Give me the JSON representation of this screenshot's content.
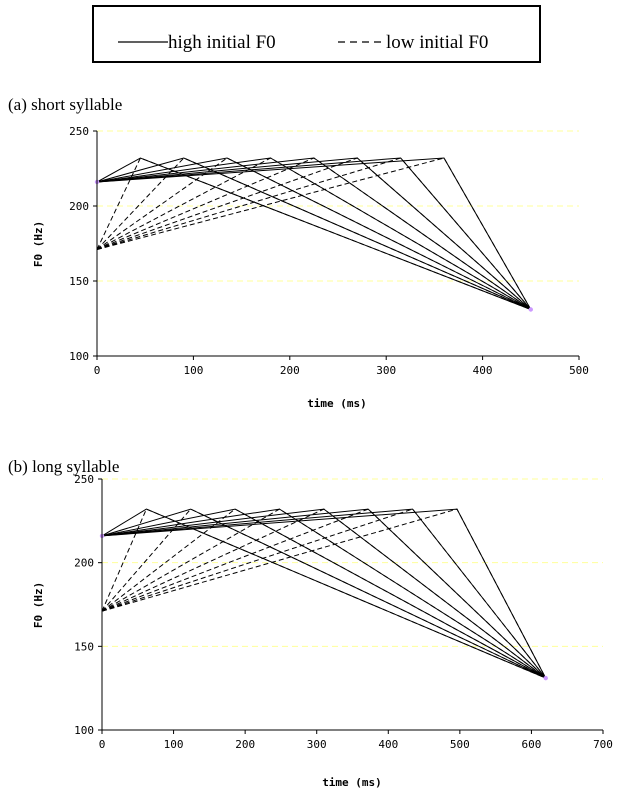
{
  "legend": [
    {
      "label": "high initial F0",
      "style": "solid"
    },
    {
      "label": "low initial F0",
      "style": "dashed"
    }
  ],
  "colors": {
    "line": "#000000",
    "grid": "#ffff99",
    "endpoint": "#cc99ff",
    "highlight": "#9999ff"
  },
  "chart_data": [
    {
      "type": "line",
      "title": "(a) short syllable",
      "xlabel": "time (ms)",
      "ylabel": "F0 (Hz)",
      "xlim": [
        0,
        500
      ],
      "ylim": [
        100,
        250
      ],
      "xticks": [
        0,
        100,
        200,
        300,
        400,
        500
      ],
      "yticks": [
        100,
        150,
        200,
        250
      ],
      "grid": true,
      "series": [
        {
          "style": "solid",
          "x": [
            0,
            45,
            450
          ],
          "y": [
            216,
            232,
            131
          ]
        },
        {
          "style": "solid",
          "x": [
            0,
            90,
            450
          ],
          "y": [
            216,
            232,
            131
          ]
        },
        {
          "style": "solid",
          "x": [
            0,
            135,
            450
          ],
          "y": [
            216,
            232,
            131
          ]
        },
        {
          "style": "solid",
          "x": [
            0,
            180,
            450
          ],
          "y": [
            216,
            232,
            131
          ]
        },
        {
          "style": "solid",
          "x": [
            0,
            225,
            450
          ],
          "y": [
            216,
            232,
            131
          ]
        },
        {
          "style": "solid",
          "x": [
            0,
            270,
            450
          ],
          "y": [
            216,
            232,
            131
          ]
        },
        {
          "style": "solid",
          "x": [
            0,
            315,
            450
          ],
          "y": [
            216,
            232,
            131
          ]
        },
        {
          "style": "solid",
          "x": [
            0,
            360,
            450
          ],
          "y": [
            216,
            232,
            131
          ]
        },
        {
          "style": "dashed",
          "x": [
            0,
            45,
            450
          ],
          "y": [
            171,
            232,
            131
          ]
        },
        {
          "style": "dashed",
          "x": [
            0,
            90,
            450
          ],
          "y": [
            171,
            232,
            131
          ]
        },
        {
          "style": "dashed",
          "x": [
            0,
            135,
            450
          ],
          "y": [
            171,
            232,
            131
          ]
        },
        {
          "style": "dashed",
          "x": [
            0,
            180,
            450
          ],
          "y": [
            171,
            232,
            131
          ]
        },
        {
          "style": "dashed",
          "x": [
            0,
            225,
            450
          ],
          "y": [
            171,
            232,
            131
          ]
        },
        {
          "style": "dashed",
          "x": [
            0,
            270,
            450
          ],
          "y": [
            171,
            232,
            131
          ]
        },
        {
          "style": "dashed",
          "x": [
            0,
            315,
            450
          ],
          "y": [
            171,
            232,
            131
          ]
        },
        {
          "style": "dashed",
          "x": [
            0,
            360,
            450
          ],
          "y": [
            171,
            232,
            131
          ]
        }
      ]
    },
    {
      "type": "line",
      "title": "(b) long syllable",
      "xlabel": "time (ms)",
      "ylabel": "F0 (Hz)",
      "xlim": [
        0,
        700
      ],
      "ylim": [
        100,
        250
      ],
      "xticks": [
        0,
        100,
        200,
        300,
        400,
        500,
        600,
        700
      ],
      "yticks": [
        100,
        150,
        200,
        250
      ],
      "grid": true,
      "series": [
        {
          "style": "solid",
          "x": [
            0,
            62,
            620
          ],
          "y": [
            216,
            232,
            131
          ]
        },
        {
          "style": "solid",
          "x": [
            0,
            124,
            620
          ],
          "y": [
            216,
            232,
            131
          ]
        },
        {
          "style": "solid",
          "x": [
            0,
            186,
            620
          ],
          "y": [
            216,
            232,
            131
          ]
        },
        {
          "style": "solid",
          "x": [
            0,
            248,
            620
          ],
          "y": [
            216,
            232,
            131
          ]
        },
        {
          "style": "solid",
          "x": [
            0,
            310,
            620
          ],
          "y": [
            216,
            232,
            131
          ]
        },
        {
          "style": "solid",
          "x": [
            0,
            372,
            620
          ],
          "y": [
            216,
            232,
            131
          ]
        },
        {
          "style": "solid",
          "x": [
            0,
            434,
            620
          ],
          "y": [
            216,
            232,
            131
          ]
        },
        {
          "style": "solid",
          "x": [
            0,
            496,
            620
          ],
          "y": [
            216,
            232,
            131
          ]
        },
        {
          "style": "dashed",
          "x": [
            0,
            62,
            620
          ],
          "y": [
            171,
            232,
            131
          ]
        },
        {
          "style": "dashed",
          "x": [
            0,
            124,
            620
          ],
          "y": [
            171,
            232,
            131
          ]
        },
        {
          "style": "dashed",
          "x": [
            0,
            186,
            620
          ],
          "y": [
            171,
            232,
            131
          ]
        },
        {
          "style": "dashed",
          "x": [
            0,
            248,
            620
          ],
          "y": [
            171,
            232,
            131
          ]
        },
        {
          "style": "dashed",
          "x": [
            0,
            310,
            620
          ],
          "y": [
            171,
            232,
            131
          ]
        },
        {
          "style": "dashed",
          "x": [
            0,
            372,
            620
          ],
          "y": [
            171,
            232,
            131
          ]
        },
        {
          "style": "dashed",
          "x": [
            0,
            434,
            620
          ],
          "y": [
            171,
            232,
            131
          ]
        },
        {
          "style": "dashed",
          "x": [
            0,
            496,
            620
          ],
          "y": [
            171,
            232,
            131
          ]
        }
      ]
    }
  ]
}
